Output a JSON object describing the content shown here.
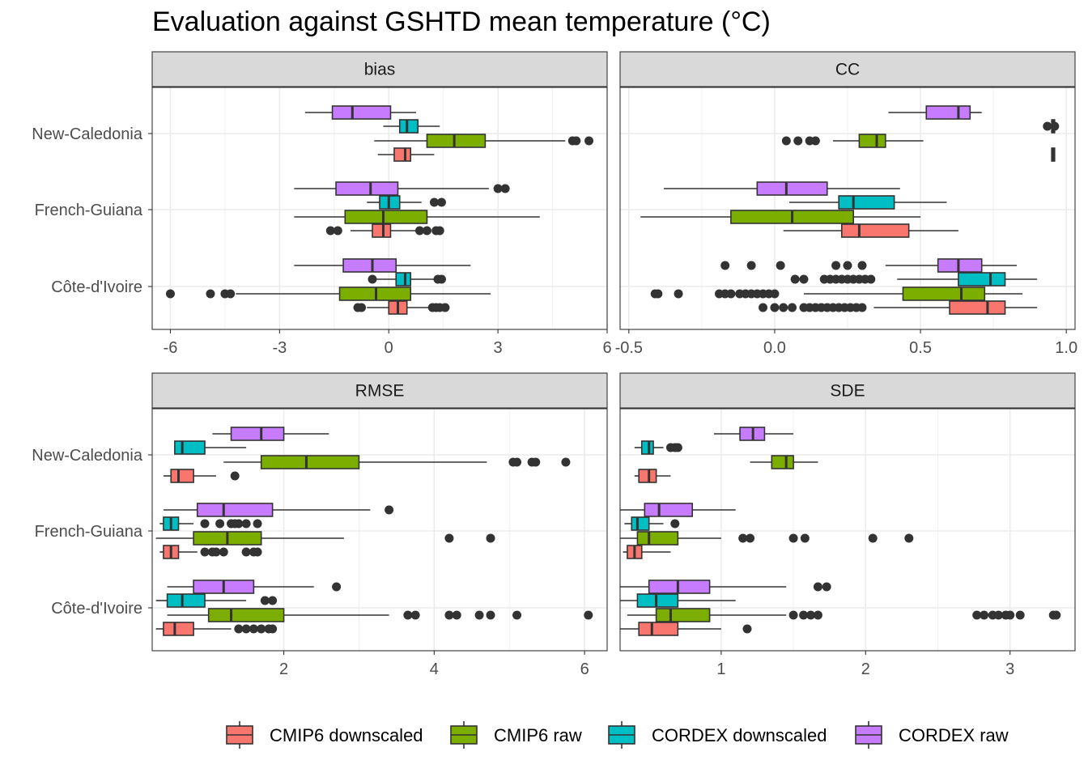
{
  "chart_data": {
    "type": "boxplot",
    "title": "Evaluation against GSHTD mean temperature (°C)",
    "regions": [
      "New-Caledonia",
      "French-Guiana",
      "Côte-d'Ivoire"
    ],
    "groups": [
      {
        "name": "CMIP6 downscaled",
        "color": "#F8766D"
      },
      {
        "name": "CMIP6 raw",
        "color": "#7CAE00"
      },
      {
        "name": "CORDEX downscaled",
        "color": "#00BFC4"
      },
      {
        "name": "CORDEX raw",
        "color": "#C77CFF"
      }
    ],
    "legend_position": "bottom",
    "grid": true,
    "panels": [
      {
        "label": "bias",
        "xlim": [
          -6.5,
          6.0
        ],
        "xticks": [
          -6,
          -3,
          0,
          3,
          6
        ],
        "xtick_labels": [
          "-6",
          "-3",
          "0",
          "3",
          "6"
        ],
        "boxes": [
          {
            "region": "New-Caledonia",
            "group": "CORDEX raw",
            "whislo": -2.3,
            "q1": -1.55,
            "med": -1.0,
            "q3": 0.05,
            "whishi": 0.75,
            "outliers": []
          },
          {
            "region": "New-Caledonia",
            "group": "CORDEX downscaled",
            "whislo": -0.15,
            "q1": 0.3,
            "med": 0.5,
            "q3": 0.8,
            "whishi": 1.4,
            "outliers": []
          },
          {
            "region": "New-Caledonia",
            "group": "CMIP6 raw",
            "whislo": -0.4,
            "q1": 1.05,
            "med": 1.8,
            "q3": 2.65,
            "whishi": 4.85,
            "outliers": [
              5.05,
              5.15,
              5.5
            ]
          },
          {
            "region": "New-Caledonia",
            "group": "CMIP6 downscaled",
            "whislo": -0.3,
            "q1": 0.15,
            "med": 0.45,
            "q3": 0.6,
            "whishi": 1.25,
            "outliers": []
          },
          {
            "region": "French-Guiana",
            "group": "CORDEX raw",
            "whislo": -2.6,
            "q1": -1.45,
            "med": -0.5,
            "q3": 0.25,
            "whishi": 2.75,
            "outliers": [
              3.0,
              3.2
            ]
          },
          {
            "region": "French-Guiana",
            "group": "CORDEX downscaled",
            "whislo": -0.6,
            "q1": -0.25,
            "med": 0.0,
            "q3": 0.3,
            "whishi": 0.9,
            "outliers": [
              1.25,
              1.45
            ]
          },
          {
            "region": "French-Guiana",
            "group": "CMIP6 raw",
            "whislo": -2.6,
            "q1": -1.2,
            "med": -0.15,
            "q3": 1.05,
            "whishi": 4.15,
            "outliers": []
          },
          {
            "region": "French-Guiana",
            "group": "CMIP6 downscaled",
            "whislo": -1.05,
            "q1": -0.45,
            "med": -0.15,
            "q3": 0.05,
            "whishi": 0.75,
            "outliers": [
              -1.6,
              -1.4,
              0.85,
              1.05,
              1.3,
              1.4
            ]
          },
          {
            "region": "Côte-d'Ivoire",
            "group": "CORDEX raw",
            "whislo": -2.6,
            "q1": -1.25,
            "med": -0.45,
            "q3": 0.2,
            "whishi": 2.25,
            "outliers": []
          },
          {
            "region": "Côte-d'Ivoire",
            "group": "CORDEX downscaled",
            "whislo": -0.45,
            "q1": 0.2,
            "med": 0.45,
            "q3": 0.6,
            "whishi": 1.3,
            "outliers": [
              -0.45,
              1.35,
              1.45
            ]
          },
          {
            "region": "Côte-d'Ivoire",
            "group": "CMIP6 raw",
            "whislo": -4.2,
            "q1": -1.35,
            "med": -0.35,
            "q3": 0.6,
            "whishi": 2.8,
            "outliers": [
              -6.0,
              -4.9,
              -4.5,
              -4.35
            ]
          },
          {
            "region": "Côte-d'Ivoire",
            "group": "CMIP6 downscaled",
            "whislo": -0.6,
            "q1": 0.0,
            "med": 0.25,
            "q3": 0.5,
            "whishi": 1.15,
            "outliers": [
              -0.85,
              -0.75,
              1.2,
              1.3,
              1.4,
              1.55
            ]
          }
        ]
      },
      {
        "label": "CC",
        "xlim": [
          -0.53,
          1.03
        ],
        "xticks": [
          -0.5,
          0.0,
          0.5,
          1.0
        ],
        "xtick_labels": [
          "-0.5",
          "0.0",
          "0.5",
          "1.0"
        ],
        "boxes": [
          {
            "region": "New-Caledonia",
            "group": "CORDEX raw",
            "whislo": 0.39,
            "q1": 0.52,
            "med": 0.63,
            "q3": 0.67,
            "whishi": 0.71,
            "outliers": []
          },
          {
            "region": "New-Caledonia",
            "group": "CORDEX downscaled",
            "whislo": 0.94,
            "q1": 0.95,
            "med": 0.955,
            "q3": 0.96,
            "whishi": 0.97,
            "outliers": [
              0.935,
              0.96
            ]
          },
          {
            "region": "New-Caledonia",
            "group": "CMIP6 raw",
            "whislo": 0.2,
            "q1": 0.29,
            "med": 0.35,
            "q3": 0.38,
            "whishi": 0.51,
            "outliers": [
              0.04,
              0.08,
              0.12,
              0.14
            ]
          },
          {
            "region": "New-Caledonia",
            "group": "CMIP6 downscaled",
            "whislo": 0.95,
            "q1": 0.95,
            "med": 0.955,
            "q3": 0.96,
            "whishi": 0.96,
            "outliers": []
          },
          {
            "region": "French-Guiana",
            "group": "CORDEX raw",
            "whislo": -0.38,
            "q1": -0.06,
            "med": 0.04,
            "q3": 0.18,
            "whishi": 0.43,
            "outliers": []
          },
          {
            "region": "French-Guiana",
            "group": "CORDEX downscaled",
            "whislo": 0.05,
            "q1": 0.22,
            "med": 0.27,
            "q3": 0.41,
            "whishi": 0.59,
            "outliers": []
          },
          {
            "region": "French-Guiana",
            "group": "CMIP6 raw",
            "whislo": -0.46,
            "q1": -0.15,
            "med": 0.06,
            "q3": 0.27,
            "whishi": 0.5,
            "outliers": []
          },
          {
            "region": "French-Guiana",
            "group": "CMIP6 downscaled",
            "whislo": 0.03,
            "q1": 0.23,
            "med": 0.29,
            "q3": 0.46,
            "whishi": 0.63,
            "outliers": []
          },
          {
            "region": "Côte-d'Ivoire",
            "group": "CORDEX raw",
            "whislo": 0.38,
            "q1": 0.56,
            "med": 0.63,
            "q3": 0.71,
            "whishi": 0.83,
            "outliers": [
              -0.17,
              -0.08,
              0.02,
              0.21,
              0.25,
              0.3
            ]
          },
          {
            "region": "Côte-d'Ivoire",
            "group": "CORDEX downscaled",
            "whislo": 0.42,
            "q1": 0.63,
            "med": 0.74,
            "q3": 0.79,
            "whishi": 0.9,
            "outliers": [
              0.07,
              0.1,
              0.17,
              0.19,
              0.21,
              0.23,
              0.25,
              0.27,
              0.29,
              0.31,
              0.33
            ]
          },
          {
            "region": "Côte-d'Ivoire",
            "group": "CMIP6 raw",
            "whislo": 0.1,
            "q1": 0.44,
            "med": 0.64,
            "q3": 0.72,
            "whishi": 0.85,
            "outliers": [
              -0.41,
              -0.4,
              -0.33,
              -0.19,
              -0.17,
              -0.15,
              -0.12,
              -0.1,
              -0.08,
              -0.06,
              -0.04,
              -0.02,
              0.0
            ]
          },
          {
            "region": "Côte-d'Ivoire",
            "group": "CMIP6 downscaled",
            "whislo": 0.34,
            "q1": 0.6,
            "med": 0.73,
            "q3": 0.79,
            "whishi": 0.9,
            "outliers": [
              -0.04,
              0.0,
              0.03,
              0.06,
              0.1,
              0.12,
              0.14,
              0.16,
              0.18,
              0.2,
              0.22,
              0.24,
              0.26,
              0.28,
              0.3
            ]
          }
        ]
      },
      {
        "label": "RMSE",
        "xlim": [
          0.25,
          6.3
        ],
        "xticks": [
          2,
          4,
          6
        ],
        "xtick_labels": [
          "2",
          "4",
          "6"
        ],
        "boxes": [
          {
            "region": "New-Caledonia",
            "group": "CORDEX raw",
            "whislo": 1.05,
            "q1": 1.3,
            "med": 1.7,
            "q3": 2.0,
            "whishi": 2.6,
            "outliers": []
          },
          {
            "region": "New-Caledonia",
            "group": "CORDEX downscaled",
            "whislo": 0.55,
            "q1": 0.55,
            "med": 0.65,
            "q3": 0.95,
            "whishi": 1.5,
            "outliers": []
          },
          {
            "region": "New-Caledonia",
            "group": "CMIP6 raw",
            "whislo": 1.2,
            "q1": 1.7,
            "med": 2.3,
            "q3": 3.0,
            "whishi": 4.7,
            "outliers": [
              5.05,
              5.1,
              5.3,
              5.35,
              5.75
            ]
          },
          {
            "region": "New-Caledonia",
            "group": "CMIP6 downscaled",
            "whislo": 0.4,
            "q1": 0.5,
            "med": 0.6,
            "q3": 0.8,
            "whishi": 1.1,
            "outliers": [
              1.35
            ]
          },
          {
            "region": "French-Guiana",
            "group": "CORDEX raw",
            "whislo": 0.4,
            "q1": 0.85,
            "med": 1.2,
            "q3": 1.85,
            "whishi": 3.15,
            "outliers": [
              3.4
            ]
          },
          {
            "region": "French-Guiana",
            "group": "CORDEX downscaled",
            "whislo": 0.35,
            "q1": 0.4,
            "med": 0.5,
            "q3": 0.6,
            "whishi": 0.8,
            "outliers": [
              0.95,
              1.15,
              1.3,
              1.35,
              1.4,
              1.5,
              1.65
            ]
          },
          {
            "region": "French-Guiana",
            "group": "CMIP6 raw",
            "whislo": 0.3,
            "q1": 0.8,
            "med": 1.25,
            "q3": 1.7,
            "whishi": 2.8,
            "outliers": [
              4.2,
              4.75
            ]
          },
          {
            "region": "French-Guiana",
            "group": "CMIP6 downscaled",
            "whislo": 0.35,
            "q1": 0.4,
            "med": 0.5,
            "q3": 0.6,
            "whishi": 0.85,
            "outliers": [
              0.95,
              1.05,
              1.1,
              1.2,
              1.5,
              1.6,
              1.65
            ]
          },
          {
            "region": "Côte-d'Ivoire",
            "group": "CORDEX raw",
            "whislo": 0.45,
            "q1": 0.8,
            "med": 1.2,
            "q3": 1.6,
            "whishi": 2.4,
            "outliers": [
              2.7
            ]
          },
          {
            "region": "Côte-d'Ivoire",
            "group": "CORDEX downscaled",
            "whislo": 0.3,
            "q1": 0.45,
            "med": 0.65,
            "q3": 0.95,
            "whishi": 1.5,
            "outliers": [
              1.75,
              1.85
            ]
          },
          {
            "region": "Côte-d'Ivoire",
            "group": "CMIP6 raw",
            "whislo": 0.45,
            "q1": 1.0,
            "med": 1.3,
            "q3": 2.0,
            "whishi": 3.4,
            "outliers": [
              3.65,
              3.75,
              4.2,
              4.3,
              4.6,
              4.75,
              5.1,
              6.05
            ]
          },
          {
            "region": "Côte-d'Ivoire",
            "group": "CMIP6 downscaled",
            "whislo": 0.3,
            "q1": 0.4,
            "med": 0.55,
            "q3": 0.8,
            "whishi": 1.3,
            "outliers": [
              1.4,
              1.5,
              1.6,
              1.7,
              1.8,
              1.85
            ]
          }
        ]
      },
      {
        "label": "SDE",
        "xlim": [
          0.3,
          3.45
        ],
        "xticks": [
          1,
          2,
          3
        ],
        "xtick_labels": [
          "1",
          "2",
          "3"
        ],
        "boxes": [
          {
            "region": "New-Caledonia",
            "group": "CORDEX raw",
            "whislo": 0.95,
            "q1": 1.13,
            "med": 1.22,
            "q3": 1.3,
            "whishi": 1.5,
            "outliers": []
          },
          {
            "region": "New-Caledonia",
            "group": "CORDEX downscaled",
            "whislo": 0.4,
            "q1": 0.45,
            "med": 0.5,
            "q3": 0.53,
            "whishi": 0.6,
            "outliers": [
              0.65,
              0.68,
              0.7
            ]
          },
          {
            "region": "New-Caledonia",
            "group": "CMIP6 raw",
            "whislo": 1.2,
            "q1": 1.35,
            "med": 1.45,
            "q3": 1.5,
            "whishi": 1.67,
            "outliers": []
          },
          {
            "region": "New-Caledonia",
            "group": "CMIP6 downscaled",
            "whislo": 0.4,
            "q1": 0.43,
            "med": 0.5,
            "q3": 0.55,
            "whishi": 0.65,
            "outliers": []
          },
          {
            "region": "French-Guiana",
            "group": "CORDEX raw",
            "whislo": 0.3,
            "q1": 0.47,
            "med": 0.57,
            "q3": 0.8,
            "whishi": 1.1,
            "outliers": []
          },
          {
            "region": "French-Guiana",
            "group": "CORDEX downscaled",
            "whislo": 0.33,
            "q1": 0.38,
            "med": 0.42,
            "q3": 0.5,
            "whishi": 0.6,
            "outliers": [
              0.68
            ]
          },
          {
            "region": "French-Guiana",
            "group": "CMIP6 raw",
            "whislo": 0.3,
            "q1": 0.42,
            "med": 0.5,
            "q3": 0.7,
            "whishi": 1.0,
            "outliers": [
              1.15,
              1.2,
              1.5,
              1.58,
              2.05,
              2.3
            ]
          },
          {
            "region": "French-Guiana",
            "group": "CMIP6 downscaled",
            "whislo": 0.32,
            "q1": 0.35,
            "med": 0.4,
            "q3": 0.45,
            "whishi": 0.65,
            "outliers": []
          },
          {
            "region": "Côte-d'Ivoire",
            "group": "CORDEX raw",
            "whislo": 0.3,
            "q1": 0.5,
            "med": 0.7,
            "q3": 0.92,
            "whishi": 1.45,
            "outliers": [
              1.67,
              1.73
            ]
          },
          {
            "region": "Côte-d'Ivoire",
            "group": "CORDEX downscaled",
            "whislo": 0.3,
            "q1": 0.42,
            "med": 0.55,
            "q3": 0.7,
            "whishi": 1.1,
            "outliers": []
          },
          {
            "region": "Côte-d'Ivoire",
            "group": "CMIP6 raw",
            "whislo": 0.35,
            "q1": 0.55,
            "med": 0.65,
            "q3": 0.92,
            "whishi": 1.45,
            "outliers": [
              1.5,
              1.57,
              1.62,
              1.67,
              2.77,
              2.82,
              2.88,
              2.92,
              2.97,
              3.0,
              3.07,
              3.3,
              3.32
            ]
          },
          {
            "region": "Côte-d'Ivoire",
            "group": "CMIP6 downscaled",
            "whislo": 0.3,
            "q1": 0.43,
            "med": 0.52,
            "q3": 0.7,
            "whishi": 1.0,
            "outliers": [
              1.18
            ]
          }
        ]
      }
    ]
  }
}
